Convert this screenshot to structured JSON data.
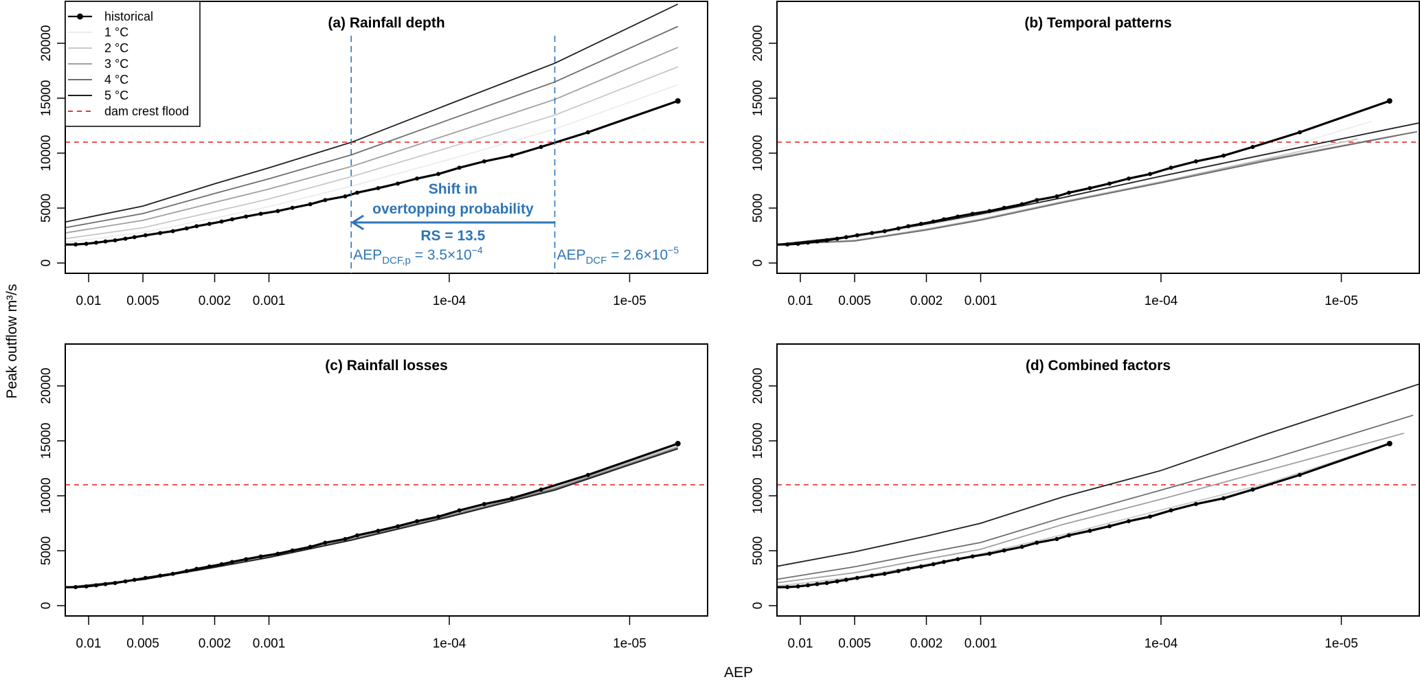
{
  "chart_data": {
    "type": "line",
    "layout": "2x2 panels",
    "x_axis": {
      "label": "AEP",
      "scale": "log",
      "reversed": true,
      "ticks": [
        0.01,
        0.005,
        0.002,
        0.001,
        0.0001,
        1e-05
      ],
      "tick_labels": [
        "0.01",
        "0.005",
        "0.002",
        "0.001",
        "1e-04",
        "1e-05"
      ]
    },
    "y_axis": {
      "label": "Peak outflow m³/s",
      "ticks": [
        0,
        5000,
        10000,
        15000,
        20000
      ],
      "tick_labels": [
        "0",
        "5000",
        "10000",
        "15000",
        "20000"
      ]
    },
    "dam_crest_flood": 11000,
    "colors": {
      "historical": "#000000",
      "1 °C": "#ececec",
      "2 °C": "#c8c8c8",
      "3 °C": "#a0a0a0",
      "4 °C": "#6e6e6e",
      "5 °C": "#1e1e1e",
      "dam crest flood": "#e41a1c",
      "annotation": "#2e75b6"
    },
    "legend": {
      "placement": "top-left of panel (a)",
      "entries": [
        "historical",
        "1 °C",
        "2 °C",
        "3 °C",
        "4 °C",
        "5 °C",
        "dam crest flood"
      ]
    },
    "historical": {
      "aep": [
        0.0135,
        0.0118,
        0.0103,
        0.00908,
        0.00807,
        0.00713,
        0.00625,
        0.00557,
        0.00484,
        0.00401,
        0.00341,
        0.00286,
        0.00252,
        0.00214,
        0.00183,
        0.0016,
        0.00134,
        0.00111,
        0.000893,
        0.000741,
        0.00059,
        0.000488,
        0.000378,
        0.000324,
        0.000248,
        0.000193,
        0.000151,
        0.000115,
        8.8e-05,
        6.4e-05,
        4.5e-05,
        3.1e-05,
        1.7e-05,
        5.4e-06
      ],
      "values": [
        1680,
        1690,
        1750,
        1850,
        1960,
        2060,
        2210,
        2350,
        2520,
        2730,
        2900,
        3150,
        3350,
        3560,
        3770,
        3980,
        4230,
        4480,
        4730,
        5020,
        5350,
        5730,
        6060,
        6400,
        6810,
        7230,
        7690,
        8100,
        8670,
        9250,
        9770,
        10560,
        11900,
        14750
      ]
    },
    "panels": [
      {
        "title": "(a) Rainfall depth",
        "series": [
          {
            "name": "1 °C",
            "aep": [
              0.0135,
              0.005,
              0.002,
              0.001,
              0.00035,
              0.0001,
              2.6e-05,
              5.4e-06
            ],
            "values": [
              1890,
              2780,
              4090,
              5130,
              6980,
              9420,
              12190,
              16220
            ]
          },
          {
            "name": "2 °C",
            "aep": [
              0.0135,
              0.005,
              0.002,
              0.001,
              0.00035,
              0.0001,
              2.6e-05,
              5.4e-06
            ],
            "values": [
              2210,
              3210,
              4690,
              5830,
              7850,
              10520,
              13460,
              17850
            ]
          },
          {
            "name": "3 °C",
            "aep": [
              0.0135,
              0.005,
              0.002,
              0.001,
              0.00035,
              0.0001,
              2.6e-05,
              5.4e-06
            ],
            "values": [
              2740,
              3880,
              5510,
              6730,
              8780,
              11710,
              14890,
              19620
            ]
          },
          {
            "name": "4 °C",
            "aep": [
              0.0135,
              0.005,
              0.002,
              0.001,
              0.00035,
              0.0001,
              2.6e-05,
              5.4e-06
            ],
            "values": [
              3210,
              4500,
              6330,
              7660,
              9840,
              13050,
              16480,
              21530
            ]
          },
          {
            "name": "5 °C",
            "aep": [
              0.0135,
              0.005,
              0.002,
              0.001,
              0.00035,
              0.0001,
              2.6e-05,
              5.4e-06
            ],
            "values": [
              3730,
              5180,
              7210,
              8660,
              10980,
              14470,
              18180,
              23560
            ]
          }
        ],
        "annotation": {
          "line1": "Shift in",
          "line2": "overtopping probability",
          "rs": "RS = 13.5",
          "from_aep": 2.6e-05,
          "to_aep": 0.00035,
          "left": {
            "main": "AEP",
            "sub": "DCF,p",
            "eq": " = 3.5×10",
            "exp": "−4"
          },
          "right": {
            "main": "AEP",
            "sub": "DCF",
            "eq": " = 2.6×10",
            "exp": "−5"
          }
        }
      },
      {
        "title": "(b) Temporal patterns",
        "series": [
          {
            "name": "1 °C",
            "aep": [
              0.0135,
              0.005,
              0.002,
              0.001,
              0.00035,
              0.0001,
              2.6e-05,
              6.8e-06
            ],
            "values": [
              1690,
              2300,
              3400,
              4300,
              5900,
              7900,
              10000,
              12900
            ]
          },
          {
            "name": "2 °C",
            "aep": [
              0.0135,
              0.005,
              0.002,
              0.001,
              0.00035,
              0.0001,
              2.6e-05,
              8.1e-06
            ],
            "values": [
              1690,
              2050,
              3100,
              4000,
              5600,
              7400,
              9500,
              11300
            ]
          },
          {
            "name": "3 °C",
            "aep": [
              0.0135,
              0.005,
              0.002,
              0.001,
              0.00035,
              0.0001,
              2.6e-05,
              4e-06
            ],
            "values": [
              1690,
              2050,
              3050,
              3950,
              5550,
              7350,
              9400,
              11900
            ]
          },
          {
            "name": "4 °C",
            "aep": [
              0.0135,
              0.005,
              0.002,
              0.001,
              0.00035,
              0.0001,
              2.6e-05,
              3.8e-06
            ],
            "values": [
              1690,
              2000,
              3000,
              3900,
              5500,
              7300,
              9300,
              11950
            ]
          },
          {
            "name": "5 °C",
            "aep": [
              0.0135,
              0.005,
              0.002,
              0.001,
              0.00035,
              0.0001,
              2.6e-05,
              3.7e-06
            ],
            "values": [
              1690,
              2450,
              3550,
              4450,
              5950,
              7900,
              9900,
              12750
            ]
          }
        ]
      },
      {
        "title": "(c) Rainfall losses",
        "series": [
          {
            "name": "1 °C",
            "aep": [
              0.0135,
              0.005,
              0.002,
              0.001,
              0.00035,
              0.0001,
              2.6e-05,
              5.4e-06
            ],
            "values": [
              1680,
              2450,
              3610,
              4530,
              6170,
              8370,
              10850,
              14600
            ]
          },
          {
            "name": "2 °C",
            "aep": [
              0.0135,
              0.005,
              0.002,
              0.001,
              0.00035,
              0.0001,
              2.6e-05,
              5.4e-06
            ],
            "values": [
              1670,
              2430,
              3580,
              4490,
              6120,
              8300,
              10760,
              14500
            ]
          },
          {
            "name": "3 °C",
            "aep": [
              0.0135,
              0.005,
              0.002,
              0.001,
              0.00035,
              0.0001,
              2.6e-05,
              5.4e-06
            ],
            "values": [
              1660,
              2410,
              3550,
              4450,
              6060,
              8220,
              10680,
              14420
            ]
          },
          {
            "name": "4 °C",
            "aep": [
              0.0135,
              0.005,
              0.002,
              0.001,
              0.00035,
              0.0001,
              2.6e-05,
              5.4e-06
            ],
            "values": [
              1650,
              2390,
              3520,
              4410,
              6000,
              8150,
              10600,
              14340
            ]
          },
          {
            "name": "5 °C",
            "aep": [
              0.0135,
              0.005,
              0.002,
              0.001,
              0.00035,
              0.0001,
              2.6e-05,
              5.4e-06
            ],
            "values": [
              1640,
              2370,
              3490,
              4380,
              5950,
              8080,
              10520,
              14280
            ]
          }
        ]
      },
      {
        "title": "(d) Combined factors",
        "series": [
          {
            "name": "1 °C",
            "aep": [
              0.0135,
              0.005,
              0.002,
              0.001,
              0.00035,
              0.0001,
              2.6e-05,
              6e-06
            ],
            "values": [
              1750,
              2520,
              3700,
              4620,
              6300,
              8500,
              10950,
              14350
            ]
          },
          {
            "name": "2 °C",
            "aep": [
              0.0135,
              0.005,
              0.002,
              0.001,
              0.00035,
              0.0001,
              2.6e-05,
              6.6e-06
            ],
            "values": [
              1800,
              2580,
              3750,
              4700,
              6450,
              8700,
              11100,
              14300
            ]
          },
          {
            "name": "3 °C",
            "aep": [
              0.0135,
              0.005,
              0.002,
              0.001,
              0.00035,
              0.0001,
              2.6e-05,
              4.5e-06
            ],
            "values": [
              2080,
              3000,
              4230,
              5130,
              7390,
              9690,
              12290,
              15690
            ]
          },
          {
            "name": "4 °C",
            "aep": [
              0.0135,
              0.005,
              0.002,
              0.001,
              0.00035,
              0.0001,
              2.6e-05,
              4e-06
            ],
            "values": [
              2400,
              3540,
              4810,
              5750,
              8020,
              10520,
              13230,
              17330
            ]
          },
          {
            "name": "5 °C",
            "aep": [
              0.0135,
              0.005,
              0.002,
              0.001,
              0.00035,
              0.0001,
              2.6e-05,
              3.7e-06
            ],
            "values": [
              3580,
              4900,
              6330,
              7500,
              9900,
              12300,
              15620,
              20170
            ]
          }
        ]
      }
    ]
  }
}
